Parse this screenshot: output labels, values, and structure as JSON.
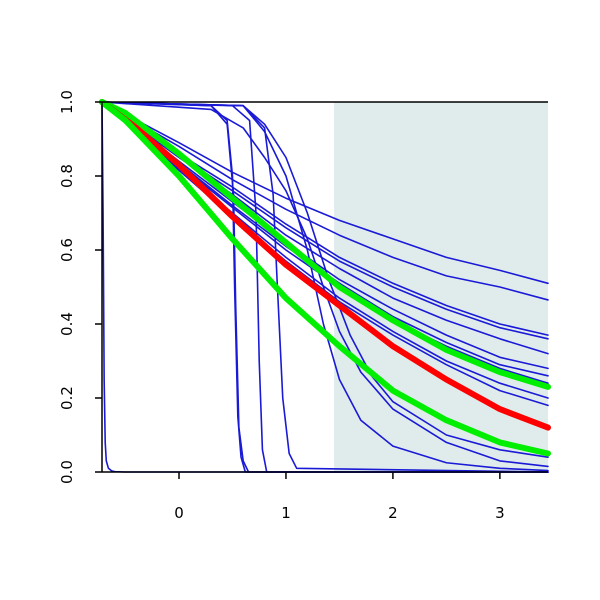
{
  "chart_data": {
    "type": "line",
    "title": "",
    "xlabel": "",
    "ylabel": "",
    "xlim": [
      -0.72,
      3.45
    ],
    "ylim": [
      0,
      1
    ],
    "x_ticks": [
      0,
      1,
      2,
      3
    ],
    "x_tick_labels": [
      "0",
      "1",
      "2",
      "3"
    ],
    "y_ticks": [
      0,
      0.2,
      0.4,
      0.6,
      0.8,
      1
    ],
    "y_tick_labels": [
      "0.0",
      "0.2",
      "0.4",
      "0.6",
      "0.8",
      "1.0"
    ],
    "grid": false,
    "shaded_region": {
      "x_start": 1.45,
      "x_end": 3.45,
      "color": "#e0ecec"
    },
    "colors": {
      "blue": "#1a1ad6",
      "red": "#ff0000",
      "green": "#00ee00"
    },
    "series": [
      {
        "color": "blue",
        "role": "thin",
        "x": [
          -0.72,
          -0.71,
          -0.7,
          -0.69,
          -0.68,
          -0.66,
          -0.63,
          -0.6,
          -0.5,
          3.45
        ],
        "y": [
          1.0,
          0.7,
          0.25,
          0.08,
          0.03,
          0.01,
          0.003,
          0.001,
          0.0,
          0.0
        ]
      },
      {
        "color": "blue",
        "role": "thin",
        "x": [
          -0.72,
          0.3,
          0.45,
          0.5,
          0.52,
          0.55,
          0.58,
          0.62,
          3.45
        ],
        "y": [
          1.0,
          0.99,
          0.95,
          0.8,
          0.5,
          0.15,
          0.04,
          0.0,
          0.0
        ]
      },
      {
        "color": "blue",
        "role": "thin",
        "x": [
          -0.72,
          0.3,
          0.45,
          0.51,
          0.53,
          0.56,
          0.6,
          0.65,
          3.45
        ],
        "y": [
          1.0,
          0.99,
          0.94,
          0.75,
          0.45,
          0.12,
          0.03,
          0.0,
          0.0
        ]
      },
      {
        "color": "blue",
        "role": "thin",
        "x": [
          -0.72,
          0.5,
          0.66,
          0.72,
          0.75,
          0.78,
          0.82,
          3.45
        ],
        "y": [
          1.0,
          0.99,
          0.95,
          0.7,
          0.3,
          0.06,
          0.0,
          0.0
        ]
      },
      {
        "color": "blue",
        "role": "thin",
        "x": [
          -0.72,
          0.6,
          0.8,
          0.88,
          0.92,
          0.97,
          1.03,
          1.1,
          3.45
        ],
        "y": [
          1.0,
          0.99,
          0.93,
          0.75,
          0.5,
          0.2,
          0.05,
          0.01,
          0.0
        ]
      },
      {
        "color": "blue",
        "role": "thin",
        "x": [
          -0.72,
          0.6,
          0.8,
          1.0,
          1.2,
          1.35,
          1.5,
          1.7,
          2.0,
          2.5,
          3.0,
          3.45
        ],
        "y": [
          1.0,
          0.99,
          0.92,
          0.8,
          0.6,
          0.4,
          0.25,
          0.14,
          0.07,
          0.025,
          0.01,
          0.004
        ]
      },
      {
        "color": "blue",
        "role": "thin",
        "x": [
          -0.72,
          0.6,
          0.8,
          1.0,
          1.2,
          1.4,
          1.6,
          1.8,
          2.0,
          2.5,
          3.0,
          3.45
        ],
        "y": [
          1.0,
          0.99,
          0.94,
          0.85,
          0.7,
          0.52,
          0.37,
          0.26,
          0.19,
          0.1,
          0.06,
          0.04
        ]
      },
      {
        "color": "blue",
        "role": "thin",
        "x": [
          -0.72,
          0.3,
          0.6,
          0.8,
          1.0,
          1.2,
          1.35,
          1.5,
          1.7,
          2.0,
          2.5,
          3.0,
          3.45
        ],
        "y": [
          1.0,
          0.98,
          0.93,
          0.85,
          0.76,
          0.63,
          0.5,
          0.38,
          0.27,
          0.17,
          0.08,
          0.03,
          0.015
        ]
      },
      {
        "color": "blue",
        "role": "thin",
        "x": [
          -0.72,
          0.0,
          0.5,
          1.0,
          1.5,
          2.0,
          2.5,
          3.0,
          3.45
        ],
        "y": [
          1.0,
          0.89,
          0.81,
          0.74,
          0.68,
          0.63,
          0.58,
          0.545,
          0.51
        ]
      },
      {
        "color": "blue",
        "role": "thin",
        "x": [
          -0.72,
          0.0,
          0.5,
          1.0,
          1.5,
          2.0,
          2.5,
          3.0,
          3.45
        ],
        "y": [
          1.0,
          0.88,
          0.79,
          0.71,
          0.64,
          0.58,
          0.53,
          0.5,
          0.465
        ]
      },
      {
        "color": "blue",
        "role": "thin",
        "x": [
          -0.72,
          0.0,
          0.5,
          1.0,
          1.5,
          2.0,
          2.5,
          3.0,
          3.45
        ],
        "y": [
          1.0,
          0.86,
          0.77,
          0.67,
          0.58,
          0.51,
          0.45,
          0.4,
          0.37
        ]
      },
      {
        "color": "blue",
        "role": "thin",
        "x": [
          -0.72,
          0.0,
          0.5,
          1.0,
          1.5,
          2.0,
          2.5,
          3.0,
          3.45
        ],
        "y": [
          1.0,
          0.855,
          0.76,
          0.66,
          0.57,
          0.5,
          0.44,
          0.39,
          0.36
        ]
      },
      {
        "color": "blue",
        "role": "thin",
        "x": [
          -0.72,
          0.0,
          0.5,
          1.0,
          1.5,
          2.0,
          2.5,
          3.0,
          3.45
        ],
        "y": [
          1.0,
          0.85,
          0.75,
          0.64,
          0.55,
          0.47,
          0.41,
          0.36,
          0.32
        ]
      },
      {
        "color": "blue",
        "role": "thin",
        "x": [
          -0.72,
          0.0,
          0.5,
          1.0,
          1.5,
          2.0,
          2.5,
          3.0,
          3.45
        ],
        "y": [
          1.0,
          0.84,
          0.73,
          0.62,
          0.52,
          0.44,
          0.37,
          0.31,
          0.28
        ]
      },
      {
        "color": "blue",
        "role": "thin",
        "x": [
          -0.72,
          0.0,
          0.5,
          1.0,
          1.5,
          2.0,
          2.5,
          3.0,
          3.45
        ],
        "y": [
          1.0,
          0.835,
          0.72,
          0.61,
          0.51,
          0.42,
          0.35,
          0.29,
          0.26
        ]
      },
      {
        "color": "blue",
        "role": "thin",
        "x": [
          -0.72,
          0.0,
          0.5,
          1.0,
          1.5,
          2.0,
          2.5,
          3.0,
          3.45
        ],
        "y": [
          1.0,
          0.83,
          0.715,
          0.6,
          0.5,
          0.41,
          0.34,
          0.28,
          0.24
        ]
      },
      {
        "color": "blue",
        "role": "thin",
        "x": [
          -0.72,
          0.0,
          0.5,
          1.0,
          1.5,
          2.0,
          2.5,
          3.0,
          3.45
        ],
        "y": [
          1.0,
          0.82,
          0.7,
          0.58,
          0.47,
          0.38,
          0.3,
          0.24,
          0.2
        ]
      },
      {
        "color": "blue",
        "role": "thin",
        "x": [
          -0.72,
          0.0,
          0.5,
          1.0,
          1.5,
          2.0,
          2.5,
          3.0,
          3.45
        ],
        "y": [
          1.0,
          0.815,
          0.69,
          0.57,
          0.46,
          0.37,
          0.29,
          0.22,
          0.18
        ]
      },
      {
        "color": "green",
        "role": "thick",
        "x": [
          -0.72,
          -0.5,
          0.0,
          0.5,
          1.0,
          1.5,
          2.0,
          2.5,
          3.0,
          3.45
        ],
        "y": [
          1.0,
          0.97,
          0.86,
          0.74,
          0.62,
          0.5,
          0.41,
          0.33,
          0.27,
          0.23
        ]
      },
      {
        "color": "red",
        "role": "thick",
        "x": [
          -0.72,
          -0.4,
          0.0,
          0.5,
          1.0,
          1.5,
          2.0,
          2.5,
          3.0,
          3.45
        ],
        "y": [
          1.0,
          0.93,
          0.83,
          0.69,
          0.56,
          0.45,
          0.34,
          0.25,
          0.17,
          0.12
        ]
      },
      {
        "color": "green",
        "role": "thick",
        "x": [
          -0.72,
          -0.5,
          0.0,
          0.5,
          1.0,
          1.5,
          2.0,
          2.5,
          3.0,
          3.45
        ],
        "y": [
          1.0,
          0.95,
          0.8,
          0.63,
          0.47,
          0.34,
          0.22,
          0.14,
          0.08,
          0.05
        ]
      }
    ]
  }
}
